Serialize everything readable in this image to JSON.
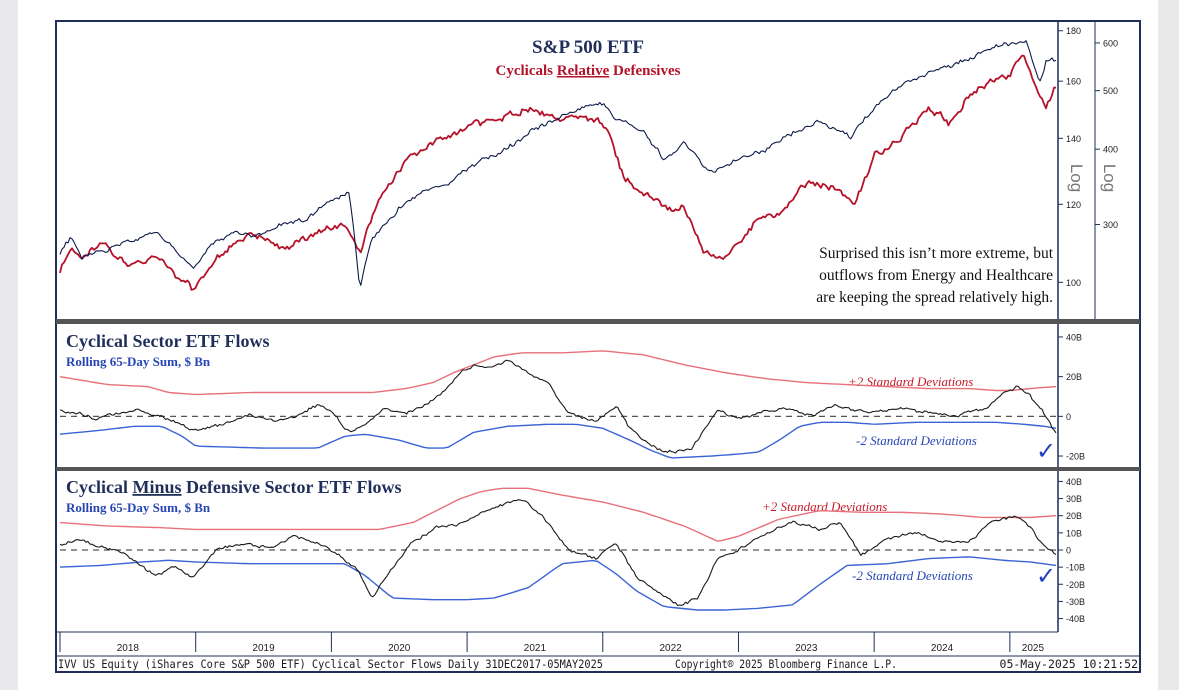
{
  "colors": {
    "frame": "#1f2f5a",
    "price": "#0d1b4a",
    "ratio": "#b5122a",
    "upper_band": "#e8707a",
    "lower_band": "#3a63d6",
    "flow": "#1a1a1a",
    "zero_line": "#555555",
    "annotation_red": "#c41a2b",
    "annotation_blue": "#2746b5",
    "check": "#1f3fbf"
  },
  "chart_data": [
    {
      "type": "line",
      "title": "S&P 500 ETF",
      "subtitle_parts": [
        "Cyclicals ",
        "Relative",
        " Defensives"
      ],
      "x_range": [
        2018.0,
        2025.34
      ],
      "right_axis_log_label": "Log",
      "right_axis_log_label_outer": "Log",
      "ratio_axis": {
        "ylim": [
          92,
          182
        ],
        "ticks": [
          100,
          120,
          140,
          160,
          180
        ]
      },
      "price_axis": {
        "ylim": [
          210,
          640
        ],
        "ticks": [
          300,
          400,
          500,
          600
        ]
      },
      "annotation_lines": [
        "Surprised this isn’t more extreme, but",
        "outflows from Energy and Healthcare",
        "are keeping the spread relatively high."
      ],
      "series": [
        {
          "name": "S&P 500 ETF (IVV)",
          "axis": "price",
          "x": [
            2018.0,
            2018.08,
            2018.16,
            2018.33,
            2018.5,
            2018.72,
            2018.98,
            2019.1,
            2019.3,
            2019.42,
            2019.6,
            2019.8,
            2019.98,
            2020.13,
            2020.21,
            2020.3,
            2020.5,
            2020.7,
            2020.85,
            2021.0,
            2021.25,
            2021.5,
            2021.72,
            2021.98,
            2022.1,
            2022.2,
            2022.3,
            2022.45,
            2022.6,
            2022.78,
            2023.0,
            2023.2,
            2023.45,
            2023.6,
            2023.83,
            2024.0,
            2024.25,
            2024.5,
            2024.7,
            2024.85,
            2025.0,
            2025.12,
            2025.22,
            2025.27,
            2025.34
          ],
          "values": [
            270,
            285,
            265,
            272,
            282,
            292,
            252,
            278,
            292,
            285,
            300,
            305,
            325,
            338,
            235,
            285,
            320,
            345,
            350,
            372,
            395,
            430,
            455,
            478,
            450,
            440,
            425,
            385,
            410,
            365,
            385,
            400,
            430,
            445,
            420,
            470,
            520,
            545,
            565,
            585,
            600,
            608,
            515,
            560,
            565
          ]
        },
        {
          "name": "Cyclicals Relative Defensives",
          "axis": "ratio",
          "x": [
            2018.0,
            2018.08,
            2018.16,
            2018.3,
            2018.5,
            2018.7,
            2018.98,
            2019.15,
            2019.4,
            2019.65,
            2019.95,
            2020.1,
            2020.21,
            2020.35,
            2020.6,
            2020.85,
            2021.0,
            2021.25,
            2021.45,
            2021.6,
            2021.8,
            2021.95,
            2022.05,
            2022.15,
            2022.25,
            2022.38,
            2022.5,
            2022.6,
            2022.75,
            2022.9,
            2023.0,
            2023.15,
            2023.3,
            2023.5,
            2023.7,
            2023.85,
            2024.0,
            2024.2,
            2024.4,
            2024.55,
            2024.7,
            2024.85,
            2025.0,
            2025.1,
            2025.2,
            2025.26,
            2025.34
          ],
          "values": [
            103,
            108,
            105,
            110,
            104,
            106,
            98,
            106,
            112,
            108,
            113,
            114,
            107,
            122,
            134,
            141,
            144,
            147,
            150,
            148,
            146,
            146,
            142,
            128,
            124,
            121,
            118,
            119,
            107,
            106,
            110,
            116,
            117,
            126,
            125,
            120,
            134,
            141,
            150,
            145,
            155,
            160,
            162,
            170,
            158,
            149,
            158
          ]
        }
      ]
    },
    {
      "type": "line",
      "title": "Cyclical Sector ETF Flows",
      "subtitle": "Rolling 65-Day Sum, $ Bn",
      "ylim": [
        -22,
        42
      ],
      "y_ticks": [
        {
          "value": 40,
          "label": "40B"
        },
        {
          "value": 20,
          "label": "20B"
        },
        {
          "value": 0,
          "label": "0"
        },
        {
          "value": -20,
          "label": "-20B"
        }
      ],
      "upper_label": "+2 Standard Deviations",
      "lower_label": "-2 Standard Deviations",
      "series": [
        {
          "name": "Cyclical Sector ETF Flows",
          "x": [
            2018.0,
            2018.12,
            2018.25,
            2018.4,
            2018.58,
            2018.75,
            2018.9,
            2019.0,
            2019.2,
            2019.4,
            2019.6,
            2019.75,
            2019.9,
            2020.0,
            2020.13,
            2020.28,
            2020.4,
            2020.55,
            2020.7,
            2020.85,
            2020.95,
            2021.05,
            2021.15,
            2021.3,
            2021.45,
            2021.6,
            2021.75,
            2021.95,
            2022.1,
            2022.2,
            2022.3,
            2022.45,
            2022.65,
            2022.85,
            2023.0,
            2023.2,
            2023.4,
            2023.55,
            2023.7,
            2023.85,
            2024.0,
            2024.2,
            2024.4,
            2024.6,
            2024.75,
            2024.85,
            2024.95,
            2025.05,
            2025.15,
            2025.25,
            2025.34
          ],
          "values": [
            3,
            2,
            -1,
            1,
            3,
            0,
            -4,
            -7,
            -4,
            1,
            -2,
            0,
            6,
            3,
            -8,
            -3,
            4,
            2,
            6,
            14,
            22,
            26,
            24,
            28,
            22,
            16,
            2,
            -3,
            5,
            -6,
            -12,
            -18,
            -17,
            3,
            -1,
            3,
            4,
            0,
            6,
            3,
            2,
            4,
            2,
            0,
            3,
            5,
            12,
            15,
            10,
            2,
            -9
          ]
        },
        {
          "name": "+2 Standard Deviations",
          "x": [
            2018.0,
            2018.35,
            2018.65,
            2018.8,
            2019.0,
            2019.4,
            2019.75,
            2020.0,
            2020.3,
            2020.55,
            2020.75,
            2020.9,
            2021.05,
            2021.2,
            2021.4,
            2021.7,
            2022.0,
            2022.3,
            2022.6,
            2022.9,
            2023.2,
            2023.5,
            2023.8,
            2024.1,
            2024.4,
            2024.7,
            2024.9,
            2025.0,
            2025.15,
            2025.34
          ],
          "values": [
            20,
            16,
            15,
            12,
            11,
            12,
            12,
            12,
            12,
            14,
            17,
            22,
            26,
            30,
            32,
            32,
            33,
            31,
            26,
            22,
            19,
            17,
            16,
            15,
            14,
            14,
            13,
            13,
            14,
            15
          ]
        },
        {
          "name": "-2 Standard Deviations",
          "x": [
            2018.0,
            2018.3,
            2018.55,
            2018.75,
            2018.9,
            2019.0,
            2019.5,
            2019.9,
            2020.1,
            2020.25,
            2020.5,
            2020.7,
            2020.85,
            2021.05,
            2021.3,
            2021.6,
            2021.8,
            2022.0,
            2022.2,
            2022.35,
            2022.5,
            2022.8,
            2023.0,
            2023.15,
            2023.3,
            2023.45,
            2023.6,
            2023.8,
            2024.0,
            2024.3,
            2024.6,
            2024.9,
            2025.1,
            2025.25,
            2025.34
          ],
          "values": [
            -9,
            -7,
            -5,
            -5,
            -10,
            -15,
            -16,
            -16,
            -10,
            -9,
            -12,
            -16,
            -16,
            -8,
            -5,
            -4,
            -4,
            -6,
            -12,
            -17,
            -21,
            -20,
            -19,
            -18,
            -12,
            -5,
            -3,
            -3,
            -4,
            -3,
            -3,
            -3,
            -4,
            -5,
            -6
          ]
        }
      ]
    },
    {
      "type": "line",
      "title_parts": [
        "Cyclical ",
        "Minus",
        " Defensive Sector ETF Flows"
      ],
      "subtitle": "Rolling 65-Day Sum, $ Bn",
      "ylim": [
        -42,
        42
      ],
      "y_ticks": [
        {
          "value": 40,
          "label": "40B"
        },
        {
          "value": 30,
          "label": "30B"
        },
        {
          "value": 20,
          "label": "20B"
        },
        {
          "value": 10,
          "label": "10B"
        },
        {
          "value": 0,
          "label": "0"
        },
        {
          "value": -10,
          "label": "-10B"
        },
        {
          "value": -20,
          "label": "-20B"
        },
        {
          "value": -30,
          "label": "-30B"
        },
        {
          "value": -40,
          "label": "-40B"
        }
      ],
      "upper_label": "+2 Standard Deviations",
      "lower_label": "-2 Standard Deviations",
      "series": [
        {
          "name": "Cyclical Minus Defensive Sector ETF Flows",
          "x": [
            2018.0,
            2018.12,
            2018.3,
            2018.5,
            2018.7,
            2018.85,
            2018.98,
            2019.15,
            2019.35,
            2019.55,
            2019.72,
            2019.9,
            2020.05,
            2020.2,
            2020.3,
            2020.45,
            2020.6,
            2020.8,
            2020.95,
            2021.1,
            2021.25,
            2021.4,
            2021.55,
            2021.75,
            2021.95,
            2022.1,
            2022.25,
            2022.42,
            2022.55,
            2022.7,
            2022.85,
            2023.0,
            2023.2,
            2023.4,
            2023.6,
            2023.75,
            2023.9,
            2024.1,
            2024.3,
            2024.5,
            2024.7,
            2024.85,
            2024.95,
            2025.05,
            2025.15,
            2025.25,
            2025.34
          ],
          "values": [
            3,
            6,
            2,
            -3,
            -15,
            -10,
            -16,
            0,
            4,
            1,
            8,
            4,
            -2,
            -12,
            -28,
            -10,
            5,
            14,
            15,
            22,
            26,
            30,
            20,
            0,
            -5,
            4,
            -16,
            -26,
            -32,
            -28,
            -5,
            0,
            10,
            17,
            12,
            16,
            -3,
            6,
            11,
            4,
            5,
            16,
            18,
            20,
            14,
            2,
            -2
          ]
        },
        {
          "name": "+2 Standard Deviations",
          "x": [
            2018.0,
            2018.35,
            2018.75,
            2019.0,
            2019.5,
            2020.0,
            2020.35,
            2020.6,
            2020.8,
            2020.95,
            2021.1,
            2021.25,
            2021.45,
            2021.7,
            2022.0,
            2022.3,
            2022.6,
            2022.85,
            2023.0,
            2023.3,
            2023.6,
            2023.9,
            2024.2,
            2024.5,
            2024.8,
            2025.0,
            2025.15,
            2025.34
          ],
          "values": [
            16,
            14,
            13,
            12,
            12,
            12,
            12,
            16,
            24,
            30,
            34,
            36,
            36,
            32,
            28,
            22,
            14,
            5,
            8,
            18,
            23,
            22,
            22,
            21,
            19,
            19,
            19,
            20
          ]
        },
        {
          "name": "-2 Standard Deviations",
          "x": [
            2018.0,
            2018.3,
            2018.6,
            2018.8,
            2019.0,
            2019.4,
            2019.8,
            2020.1,
            2020.25,
            2020.45,
            2020.75,
            2021.0,
            2021.2,
            2021.45,
            2021.7,
            2021.95,
            2022.1,
            2022.25,
            2022.45,
            2022.7,
            2022.9,
            2023.15,
            2023.4,
            2023.6,
            2023.8,
            2024.1,
            2024.4,
            2024.7,
            2024.95,
            2025.15,
            2025.34
          ],
          "values": [
            -10,
            -9,
            -7,
            -6,
            -7,
            -8,
            -8,
            -8,
            -15,
            -28,
            -29,
            -29,
            -28,
            -22,
            -8,
            -6,
            -14,
            -24,
            -33,
            -35,
            -35,
            -34,
            -32,
            -20,
            -9,
            -8,
            -5,
            -4,
            -6,
            -7,
            -9
          ]
        }
      ]
    }
  ],
  "x_axis": {
    "year_labels": [
      {
        "label": "2018",
        "x": 2018.5
      },
      {
        "label": "2019",
        "x": 2019.5
      },
      {
        "label": "2020",
        "x": 2020.5
      },
      {
        "label": "2021",
        "x": 2021.5
      },
      {
        "label": "2022",
        "x": 2022.5
      },
      {
        "label": "2023",
        "x": 2023.5
      },
      {
        "label": "2024",
        "x": 2024.5
      },
      {
        "label": "2025",
        "x": 2025.17
      }
    ],
    "boundaries": [
      2018.0,
      2019.0,
      2020.0,
      2021.0,
      2022.0,
      2023.0,
      2024.0,
      2025.0
    ]
  },
  "footer": {
    "left": "IVV US Equity (iShares Core S&P 500 ETF) Cyclical Sector Flows  Daily 31DEC2017-05MAY2025",
    "center": "Copyright® 2025 Bloomberg Finance L.P.",
    "right": "05-May-2025 10:21:52"
  }
}
